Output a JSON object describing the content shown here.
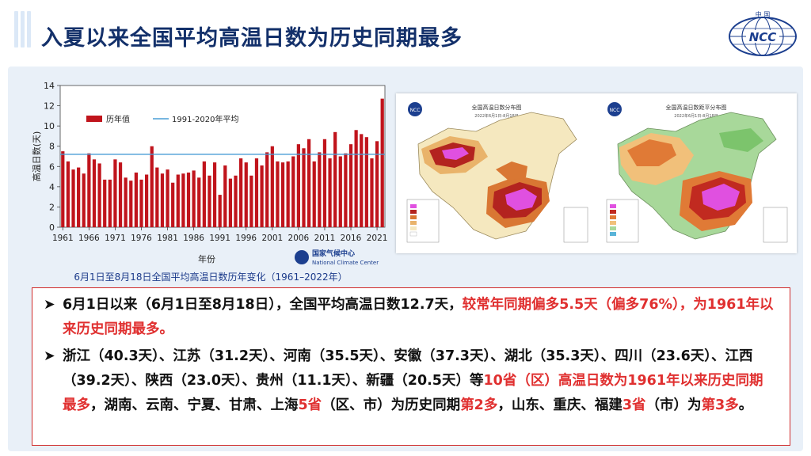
{
  "slide": {
    "title": "入夏以来全国平均高温日数为历史同期最多"
  },
  "logo": {
    "top_text": "中 国",
    "abbr": "NCC"
  },
  "chart_data": {
    "type": "bar",
    "title": "",
    "xlabel": "年份",
    "ylabel": "高温日数(天)",
    "ylim": [
      0,
      14
    ],
    "yticks": [
      0,
      2,
      4,
      6,
      8,
      10,
      12,
      14
    ],
    "xticks": [
      "1961",
      "1966",
      "1971",
      "1976",
      "1981",
      "1986",
      "1991",
      "1996",
      "2001",
      "2006",
      "2011",
      "2016",
      "2021"
    ],
    "x_start": 1961,
    "values": [
      7.5,
      6.5,
      5.7,
      5.9,
      5.3,
      7.3,
      6.7,
      6.3,
      4.7,
      4.7,
      6.7,
      6.4,
      4.9,
      4.6,
      5.4,
      4.7,
      5.2,
      8.0,
      5.9,
      5.3,
      5.7,
      4.4,
      5.2,
      5.3,
      5.4,
      5.6,
      4.9,
      6.5,
      5.1,
      6.4,
      3.2,
      6.1,
      4.8,
      5.1,
      6.8,
      6.4,
      5.1,
      6.8,
      6.1,
      7.4,
      8.0,
      6.5,
      6.4,
      6.5,
      7.0,
      8.2,
      7.8,
      8.7,
      6.5,
      7.4,
      8.7,
      6.8,
      9.4,
      7.0,
      7.3,
      8.2,
      9.6,
      9.2,
      8.9,
      6.8,
      8.5,
      12.7
    ],
    "series": [
      {
        "name": "历年值",
        "color": "#c0141c"
      }
    ],
    "reference_line": {
      "name": "1991-2020年平均",
      "value": 7.2,
      "color": "#4a9ed6"
    },
    "legend_position": "top-left",
    "grid": false,
    "source_label": "国家气候中心",
    "source_label_en": "National Climate Center"
  },
  "chart_caption": "6月1日至8月18日全国平均高温日数历年变化（1961–2022年）",
  "maps": [
    {
      "title": "全国高温日数分布图",
      "subtitle": "2022年6月1日-8月18日"
    },
    {
      "title": "全国高温日数距平分布图",
      "subtitle": "2022年6月1日-8月18日"
    }
  ],
  "bullets": [
    {
      "segments": [
        {
          "text": "6月1日以来（6月1日至8月18日），全国平均高温日数12.7天，",
          "red": false
        },
        {
          "text": "较常年同期偏多5.5天（偏多76%），为1961年以来历史同期最多。",
          "red": true
        }
      ]
    },
    {
      "segments": [
        {
          "text": "浙江（40.3天）、江苏（31.2天）、河南（35.5天）、安徽（37.3天）、湖北（35.3天）、四川（23.6天）、江西（39.2天）、陕西（23.0天）、贵州（11.1天）、新疆（20.5天）等",
          "red": false
        },
        {
          "text": "10省（区）高温日数为1961年以来历史同期最多",
          "red": true
        },
        {
          "text": "，湖南、云南、宁夏、甘肃、上海",
          "red": false
        },
        {
          "text": "5省",
          "red": true
        },
        {
          "text": "（区、市）为历史同期",
          "red": false
        },
        {
          "text": "第2多",
          "red": true
        },
        {
          "text": "，山东、重庆、福建",
          "red": false
        },
        {
          "text": "3省",
          "red": true
        },
        {
          "text": "（市）为",
          "red": false
        },
        {
          "text": "第3多",
          "red": true
        },
        {
          "text": "。",
          "red": false
        }
      ]
    }
  ]
}
